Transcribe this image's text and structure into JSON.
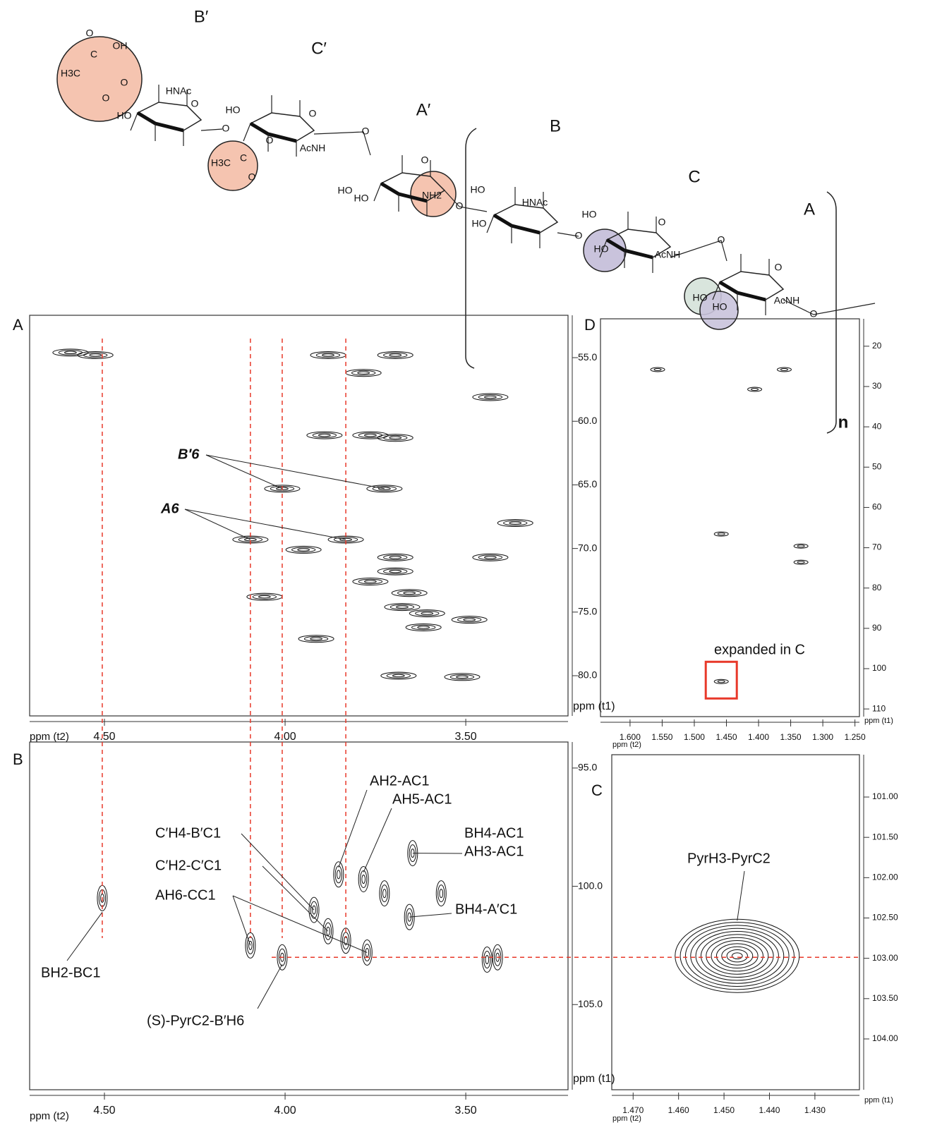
{
  "structure": {
    "residue_labels": [
      "B′",
      "C′",
      "A′",
      "B",
      "C",
      "A"
    ],
    "repeat": "n",
    "atoms": [
      "O",
      "C",
      "OH",
      "H3C",
      "O",
      "O",
      "HO",
      "HNAc",
      "O",
      "O",
      "HO",
      "O",
      "AcNH",
      "H3C",
      "C",
      "O",
      "O",
      "O",
      "HO",
      "HO",
      "NH2",
      "O",
      "O",
      "HO",
      "HNAc",
      "HO",
      "O",
      "HO",
      "O",
      "HO",
      "AcNH",
      "O",
      "O",
      "HO",
      "HO",
      "AcNH",
      "O"
    ]
  },
  "panel_labels": [
    "A",
    "B",
    "C",
    "D"
  ],
  "chart_data": [
    {
      "type": "contour",
      "x_label": "ppm (t2)",
      "y_label": "ppm (t1)",
      "xlim": [
        4.707,
        3.217
      ],
      "ylim": [
        51.67,
        83.16
      ],
      "xticks": [
        {
          "value": 4.5,
          "label": "4.50"
        },
        {
          "value": 4.0,
          "label": "4.00"
        },
        {
          "value": 3.5,
          "label": "3.50"
        }
      ],
      "yticks": [
        {
          "value": 55,
          "label": "55.0"
        },
        {
          "value": 60,
          "label": "60.0"
        },
        {
          "value": 65,
          "label": "65.0"
        },
        {
          "value": 70,
          "label": "70.0"
        },
        {
          "value": 75,
          "label": "75.0"
        },
        {
          "value": 80,
          "label": "80.0"
        }
      ],
      "peaks": {
        "x": [
          4.525,
          4.594,
          3.881,
          3.783,
          3.695,
          3.764,
          3.891,
          4.008,
          3.725,
          4.096,
          3.832,
          3.363,
          3.432,
          3.695,
          3.764,
          3.695,
          3.656,
          3.676,
          3.607,
          3.49,
          3.617,
          4.057,
          3.949,
          3.686,
          3.51,
          3.914,
          3.432,
          3.695
        ],
        "y": [
          54.8,
          54.6,
          54.8,
          56.2,
          54.8,
          61.1,
          61.1,
          65.3,
          65.3,
          69.3,
          69.3,
          68.0,
          70.7,
          70.7,
          72.6,
          71.8,
          73.5,
          74.6,
          75.1,
          75.6,
          76.2,
          73.8,
          70.1,
          80.0,
          80.1,
          77.1,
          58.1,
          61.3
        ]
      },
      "annotations": [
        {
          "text": "B′6",
          "color": "#000000"
        },
        {
          "text": "A6",
          "color": "#000000"
        }
      ]
    },
    {
      "type": "contour",
      "x_label": "ppm (t2)",
      "y_label": "ppm (t1)",
      "xlim": [
        4.707,
        3.217
      ],
      "ylim": [
        93.9,
        108.6
      ],
      "xticks": [
        {
          "value": 4.5,
          "label": "4.50"
        },
        {
          "value": 4.0,
          "label": "4.00"
        },
        {
          "value": 3.5,
          "label": "3.50"
        }
      ],
      "yticks": [
        {
          "value": 95,
          "label": "95.0"
        },
        {
          "value": 100,
          "label": "100.0"
        },
        {
          "value": 105,
          "label": "105.0"
        }
      ],
      "peaks": {
        "x": [
          4.506,
          4.096,
          4.008,
          3.852,
          3.92,
          3.832,
          3.773,
          3.725,
          3.647,
          3.656,
          3.881,
          3.441,
          3.412,
          3.568,
          3.783
        ],
        "y": [
          100.5,
          102.5,
          103.0,
          99.5,
          101.0,
          102.3,
          102.8,
          100.3,
          98.6,
          101.3,
          101.9,
          103.1,
          103.0,
          100.3,
          99.7
        ]
      },
      "annotations": [
        {
          "text": "AH2-AC1",
          "color": "#000000"
        },
        {
          "text": "AH5-AC1",
          "color": "#000000"
        },
        {
          "text": "C′H4-B′C1",
          "color": "#e8392a"
        },
        {
          "text": "BH4-AC1",
          "color": "#e8392a"
        },
        {
          "text": "AH3-AC1",
          "color": "#000000"
        },
        {
          "text": "C′H2-C′C1",
          "color": "#000000"
        },
        {
          "text": "AH6-CC1",
          "color": "#e8392a"
        },
        {
          "text": "BH4-A′C1",
          "color": "#e8392a"
        },
        {
          "text": "BH2-BC1",
          "color": "#000000"
        },
        {
          "text": "(S)-PyrC2-B′H6",
          "color": "#e8392a"
        }
      ]
    },
    {
      "type": "contour",
      "x_label": "ppm (t2)",
      "y_label": "ppm (t1)",
      "xlim": [
        1.4747,
        1.4202
      ],
      "ylim": [
        100.475,
        104.63
      ],
      "xticks": [
        {
          "value": 1.47,
          "label": "1.470"
        },
        {
          "value": 1.46,
          "label": "1.460"
        },
        {
          "value": 1.45,
          "label": "1.450"
        },
        {
          "value": 1.44,
          "label": "1.440"
        },
        {
          "value": 1.43,
          "label": "1.430"
        }
      ],
      "yticks": [
        {
          "value": 101,
          "label": "101.00"
        },
        {
          "value": 101.5,
          "label": "101.50"
        },
        {
          "value": 102,
          "label": "102.00"
        },
        {
          "value": 102.5,
          "label": "102.50"
        },
        {
          "value": 103,
          "label": "103.00"
        },
        {
          "value": 103.5,
          "label": "103.50"
        },
        {
          "value": 104,
          "label": "104.00"
        }
      ],
      "peaks": {
        "x": [
          1.4471
        ],
        "y": [
          102.97
        ]
      },
      "annotations": [
        {
          "text": "PyrH3-PyrC2",
          "color": "#000000"
        }
      ]
    },
    {
      "type": "contour",
      "x_label": "ppm (t2)",
      "y_label": "ppm (t1)",
      "xlim": [
        1.646,
        1.243
      ],
      "ylim": [
        13.2,
        111.9
      ],
      "xticks": [
        {
          "value": 1.6,
          "label": "1.600"
        },
        {
          "value": 1.55,
          "label": "1.550"
        },
        {
          "value": 1.5,
          "label": "1.500"
        },
        {
          "value": 1.45,
          "label": "1.450"
        },
        {
          "value": 1.4,
          "label": "1.400"
        },
        {
          "value": 1.35,
          "label": "1.350"
        },
        {
          "value": 1.3,
          "label": "1.300"
        },
        {
          "value": 1.25,
          "label": "1.250"
        }
      ],
      "yticks": [
        20,
        30,
        40,
        50,
        60,
        70,
        80,
        90,
        100,
        110
      ],
      "peaks": {
        "x": [
          1.557,
          1.36,
          1.406,
          1.458,
          1.334,
          1.334,
          1.458
        ],
        "y": [
          25.8,
          25.8,
          30.7,
          66.6,
          69.6,
          73.6,
          103.2
        ]
      },
      "annotations": [
        {
          "text": "expanded in C",
          "color": "#000000"
        }
      ]
    }
  ]
}
